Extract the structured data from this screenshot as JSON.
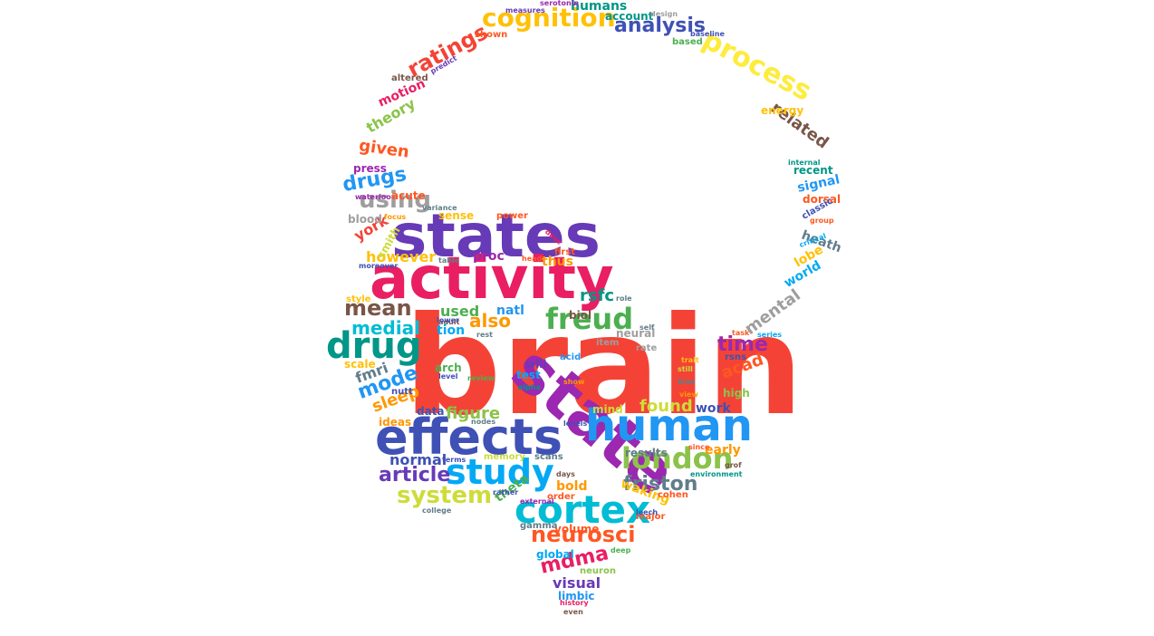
{
  "cloud": {
    "words": [
      {
        "text": "brain",
        "color": "#f44336"
      },
      {
        "text": "state",
        "color": "#9c27b0"
      },
      {
        "text": "states",
        "color": "#673ab7"
      },
      {
        "text": "activity",
        "color": "#e91e63"
      },
      {
        "text": "effects",
        "color": "#3f51b5"
      },
      {
        "text": "human",
        "color": "#2196f3"
      },
      {
        "text": "drug",
        "color": "#009688"
      },
      {
        "text": "cortex",
        "color": "#00bcd4"
      },
      {
        "text": "study",
        "color": "#03a9f4"
      },
      {
        "text": "london",
        "color": "#8bc34a"
      },
      {
        "text": "freud",
        "color": "#4caf50"
      },
      {
        "text": "cognition",
        "color": "#ffc107"
      },
      {
        "text": "process",
        "color": "#ffeb3b"
      },
      {
        "text": "system",
        "color": "#cddc39"
      },
      {
        "text": "neurosci",
        "color": "#ff5722"
      },
      {
        "text": "analysis",
        "color": "#3f51b5"
      },
      {
        "text": "ratings",
        "color": "#f44336"
      },
      {
        "text": "using",
        "color": "#9e9e9e"
      },
      {
        "text": "mean",
        "color": "#795548"
      },
      {
        "text": "mdma",
        "color": "#e91e63"
      },
      {
        "text": "article",
        "color": "#673ab7"
      },
      {
        "text": "friston",
        "color": "#607d8b"
      },
      {
        "text": "time",
        "color": "#9c27b0"
      },
      {
        "text": "figure",
        "color": "#8bc34a"
      },
      {
        "text": "found",
        "color": "#cddc39"
      },
      {
        "text": "drugs",
        "color": "#2196f3"
      },
      {
        "text": "mode",
        "color": "#2196f3"
      },
      {
        "text": "medial",
        "color": "#00bcd4"
      },
      {
        "text": "related",
        "color": "#795548"
      },
      {
        "text": "also",
        "color": "#ff9800"
      },
      {
        "text": "however",
        "color": "#ffc107"
      },
      {
        "text": "given",
        "color": "#ff5722"
      },
      {
        "text": "humans",
        "color": "#009688"
      },
      {
        "text": "mental",
        "color": "#9e9e9e"
      },
      {
        "text": "acad",
        "color": "#ff5722"
      },
      {
        "text": "normal",
        "color": "#3f51b5"
      },
      {
        "text": "york",
        "color": "#f44336"
      },
      {
        "text": "sleep",
        "color": "#ff9800"
      },
      {
        "text": "visual",
        "color": "#673ab7"
      },
      {
        "text": "rsfc",
        "color": "#009688"
      },
      {
        "text": "used",
        "color": "#4caf50"
      },
      {
        "text": "theory",
        "color": "#8bc34a"
      },
      {
        "text": "motion",
        "color": "#e91e63"
      },
      {
        "text": "fmri",
        "color": "#607d8b"
      },
      {
        "text": "work",
        "color": "#3f51b5"
      },
      {
        "text": "early",
        "color": "#ff9800"
      },
      {
        "text": "waking",
        "color": "#ffc107"
      },
      {
        "text": "proc",
        "color": "#9c27b0"
      },
      {
        "text": "natl",
        "color": "#2196f3"
      },
      {
        "text": "thus",
        "color": "#ff9800"
      },
      {
        "text": "theta",
        "color": "#4caf50"
      },
      {
        "text": "bold",
        "color": "#ff9800"
      },
      {
        "text": "tion",
        "color": "#03a9f4"
      },
      {
        "text": "mind",
        "color": "#cddc39"
      },
      {
        "text": "lobe",
        "color": "#ffc107"
      },
      {
        "text": "world",
        "color": "#03a9f4"
      },
      {
        "text": "signal",
        "color": "#2196f3"
      },
      {
        "text": "heath",
        "color": "#607d8b"
      },
      {
        "text": "high",
        "color": "#8bc34a"
      },
      {
        "text": "energy",
        "color": "#ffc107"
      },
      {
        "text": "recent",
        "color": "#009688"
      },
      {
        "text": "dorsal",
        "color": "#ff5722"
      },
      {
        "text": "press",
        "color": "#9c27b0"
      },
      {
        "text": "account",
        "color": "#009688"
      },
      {
        "text": "based",
        "color": "#4caf50"
      },
      {
        "text": "shown",
        "color": "#ff5722"
      },
      {
        "text": "altered",
        "color": "#795548"
      },
      {
        "text": "data",
        "color": "#3f51b5"
      },
      {
        "text": "ideas",
        "color": "#ff9800"
      },
      {
        "text": "results",
        "color": "#607d8b"
      },
      {
        "text": "neural",
        "color": "#9e9e9e"
      },
      {
        "text": "volume",
        "color": "#ff5722"
      },
      {
        "text": "global",
        "color": "#03a9f4"
      },
      {
        "text": "limbic",
        "color": "#2196f3"
      },
      {
        "text": "neuron",
        "color": "#8bc34a"
      },
      {
        "text": "history",
        "color": "#e91e63"
      },
      {
        "text": "sense",
        "color": "#ffc107"
      },
      {
        "text": "power",
        "color": "#ff5722"
      },
      {
        "text": "first",
        "color": "#ff5722"
      },
      {
        "text": "biol",
        "color": "#795548"
      },
      {
        "text": "nutt",
        "color": "#3f51b5"
      },
      {
        "text": "arch",
        "color": "#4caf50"
      },
      {
        "text": "will",
        "color": "#673ab7"
      },
      {
        "text": "test",
        "color": "#03a9f4"
      },
      {
        "text": "acute",
        "color": "#ff5722"
      },
      {
        "text": "blood",
        "color": "#9e9e9e"
      },
      {
        "text": "smith",
        "color": "#cddc39"
      },
      {
        "text": "memory",
        "color": "#cddc39"
      },
      {
        "text": "scans",
        "color": "#607d8b"
      },
      {
        "text": "order",
        "color": "#ff5722"
      },
      {
        "text": "cohen",
        "color": "#ff5722"
      },
      {
        "text": "gamma",
        "color": "#607d8b"
      },
      {
        "text": "major",
        "color": "#ff5722"
      },
      {
        "text": "rsns",
        "color": "#3f51b5"
      },
      {
        "text": "item",
        "color": "#9e9e9e"
      },
      {
        "text": "rate",
        "color": "#9e9e9e"
      },
      {
        "text": "acid",
        "color": "#2196f3"
      },
      {
        "text": "series",
        "color": "#03a9f4"
      },
      {
        "text": "classic",
        "color": "#3f51b5"
      },
      {
        "text": "group",
        "color": "#ff5722"
      },
      {
        "text": "critical",
        "color": "#03a9f4"
      },
      {
        "text": "internal",
        "color": "#009688"
      },
      {
        "text": "measures",
        "color": "#673ab7"
      },
      {
        "text": "serotonin",
        "color": "#9c27b0"
      },
      {
        "text": "design",
        "color": "#9e9e9e"
      },
      {
        "text": "baseline",
        "color": "#3f51b5"
      },
      {
        "text": "predict",
        "color": "#673ab7"
      },
      {
        "text": "scale",
        "color": "#ffc107"
      },
      {
        "text": "style",
        "color": "#ffc107"
      },
      {
        "text": "variance",
        "color": "#607d8b"
      },
      {
        "text": "moreover",
        "color": "#3f51b5"
      },
      {
        "text": "table",
        "color": "#607d8b"
      },
      {
        "text": "head",
        "color": "#ff5722"
      },
      {
        "text": "dose",
        "color": "#e91e63"
      },
      {
        "text": "role",
        "color": "#607d8b"
      },
      {
        "text": "adult",
        "color": "#795548"
      },
      {
        "text": "level",
        "color": "#3f51b5"
      },
      {
        "text": "review",
        "color": "#4caf50"
      },
      {
        "text": "rest",
        "color": "#607d8b"
      },
      {
        "text": "nodes",
        "color": "#607d8b"
      },
      {
        "text": "terms",
        "color": "#3f51b5"
      },
      {
        "text": "rather",
        "color": "#3f51b5"
      },
      {
        "text": "external",
        "color": "#9c27b0"
      },
      {
        "text": "days",
        "color": "#795548"
      },
      {
        "text": "levels",
        "color": "#3f51b5"
      },
      {
        "text": "trait",
        "color": "#ffc107"
      },
      {
        "text": "still",
        "color": "#cddc39"
      },
      {
        "text": "blue",
        "color": "#607d8b"
      },
      {
        "text": "view",
        "color": "#ff9800"
      },
      {
        "text": "since",
        "color": "#ff5722"
      },
      {
        "text": "grof",
        "color": "#795548"
      },
      {
        "text": "environment",
        "color": "#009688"
      },
      {
        "text": "deep",
        "color": "#4caf50"
      },
      {
        "text": "leech",
        "color": "#3f51b5"
      },
      {
        "text": "college",
        "color": "#607d8b"
      },
      {
        "text": "even",
        "color": "#795548"
      },
      {
        "text": "waterloo",
        "color": "#9c27b0"
      },
      {
        "text": "focus",
        "color": "#ff9800"
      },
      {
        "text": "self",
        "color": "#607d8b"
      },
      {
        "text": "task",
        "color": "#ff5722"
      },
      {
        "text": "lower",
        "color": "#3f51b5"
      },
      {
        "text": "show",
        "color": "#ff9800"
      },
      {
        "text": "alpha",
        "color": "#009688"
      }
    ]
  }
}
